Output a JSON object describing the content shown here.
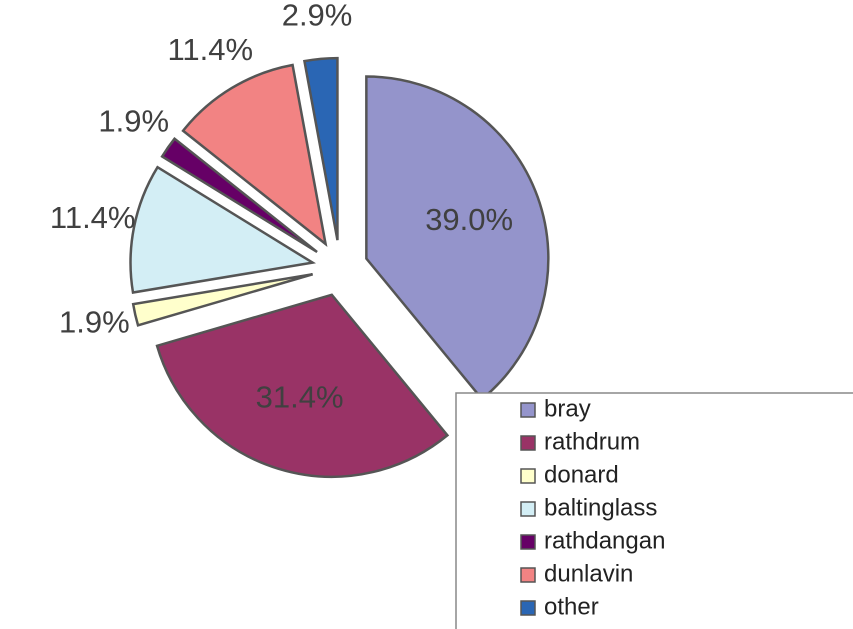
{
  "chart_data": {
    "type": "pie",
    "categories": [
      "bray",
      "rathdrum",
      "donard",
      "baltinglass",
      "rathdangan",
      "dunlavin",
      "other"
    ],
    "values": [
      39.0,
      31.4,
      1.9,
      11.4,
      1.9,
      11.4,
      2.9
    ],
    "value_labels": [
      "39.0%",
      "31.4%",
      "1.9%",
      "11.4%",
      "1.9%",
      "11.4%",
      "2.9%"
    ],
    "colors": [
      "#9494cb",
      "#993366",
      "#ffffcc",
      "#d3eef5",
      "#660066",
      "#f28383",
      "#2a66b4"
    ],
    "legend": "bottom-right"
  }
}
